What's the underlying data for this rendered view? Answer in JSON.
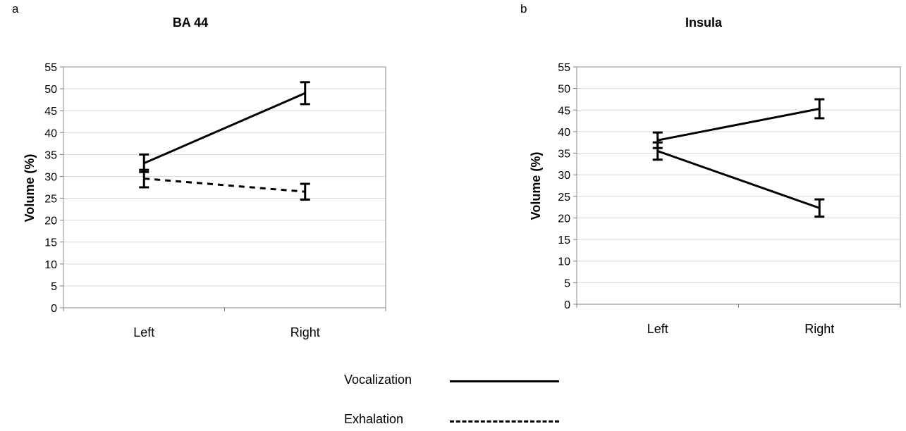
{
  "panels": [
    {
      "letter": "a"
    },
    {
      "letter": "b"
    }
  ],
  "chart_data": [
    {
      "type": "line",
      "title": "BA 44",
      "xlabel": "",
      "ylabel": "Volume (%)",
      "categories": [
        "Left",
        "Right"
      ],
      "ylim": [
        0,
        55
      ],
      "yticks": [
        0,
        5,
        10,
        15,
        20,
        25,
        30,
        35,
        40,
        45,
        50,
        55
      ],
      "grid": true,
      "series": [
        {
          "name": "Vocalization",
          "values": [
            33,
            49
          ],
          "errors": [
            2,
            2.5
          ],
          "style": "solid"
        },
        {
          "name": "Exhalation",
          "values": [
            29.5,
            26.5
          ],
          "errors": [
            2,
            1.8
          ],
          "style": "dashed"
        }
      ]
    },
    {
      "type": "line",
      "title": "Insula",
      "xlabel": "",
      "ylabel": "Volume (%)",
      "categories": [
        "Left",
        "Right"
      ],
      "ylim": [
        0,
        55
      ],
      "yticks": [
        0,
        5,
        10,
        15,
        20,
        25,
        30,
        35,
        40,
        45,
        50,
        55
      ],
      "grid": true,
      "series": [
        {
          "name": "Vocalization",
          "values": [
            38,
            45.3
          ],
          "errors": [
            1.8,
            2.2
          ],
          "style": "solid"
        },
        {
          "name": "Exhalation",
          "values": [
            35.5,
            22.3
          ],
          "errors": [
            2,
            2
          ]
        }
      ]
    }
  ],
  "legend": {
    "items": [
      {
        "label": "Vocalization",
        "style": "solid"
      },
      {
        "label": "Exhalation",
        "style": "dashed"
      }
    ]
  }
}
